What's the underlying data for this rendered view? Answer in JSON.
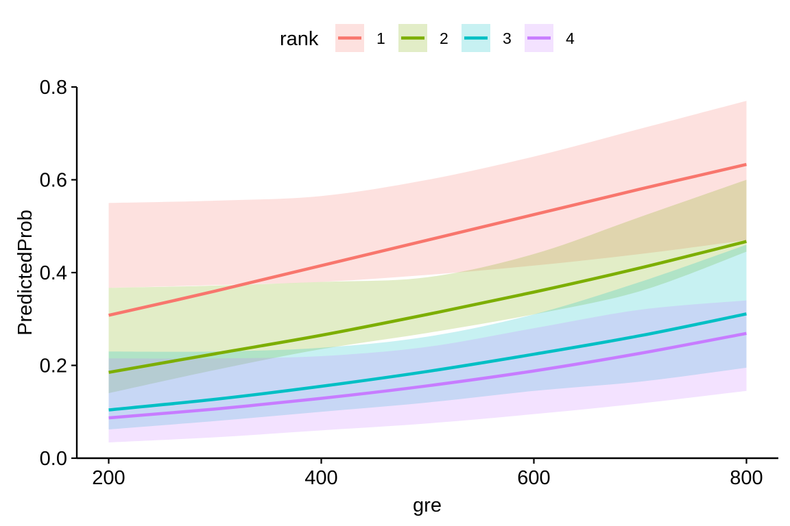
{
  "chart_data": {
    "type": "line",
    "xlabel": "gre",
    "ylabel": "PredictedProb",
    "xlim": [
      170,
      830
    ],
    "ylim": [
      0,
      0.8
    ],
    "x_ticks": [
      200,
      400,
      600,
      800
    ],
    "y_ticks": [
      0.0,
      0.2,
      0.4,
      0.6,
      0.8
    ],
    "x_tick_labels": [
      "200",
      "400",
      "600",
      "800"
    ],
    "y_tick_labels": [
      "0.0",
      "0.2",
      "0.4",
      "0.6",
      "0.8"
    ],
    "legend": {
      "title": "rank",
      "position": "top"
    },
    "x": [
      200,
      300,
      400,
      500,
      600,
      700,
      800
    ],
    "series": [
      {
        "name": "1",
        "color": "#F8766D",
        "fill": "#F8766D",
        "values": [
          0.308,
          0.36,
          0.415,
          0.47,
          0.525,
          0.58,
          0.633
        ],
        "lower": [
          0.367,
          0.373,
          0.38,
          0.395,
          0.415,
          0.44,
          0.47
        ],
        "upper": [
          0.55,
          0.555,
          0.565,
          0.6,
          0.65,
          0.71,
          0.77
        ]
      },
      {
        "name": "2",
        "color": "#7CAE00",
        "fill": "#7CAE00",
        "values": [
          0.185,
          0.225,
          0.265,
          0.31,
          0.358,
          0.41,
          0.467
        ],
        "lower": [
          0.14,
          0.19,
          0.235,
          0.27,
          0.31,
          0.36,
          0.445
        ],
        "upper": [
          0.367,
          0.372,
          0.38,
          0.39,
          0.44,
          0.52,
          0.6
        ]
      },
      {
        "name": "3",
        "color": "#00BFC4",
        "fill": "#00BFC4",
        "values": [
          0.104,
          0.127,
          0.155,
          0.187,
          0.224,
          0.264,
          0.311
        ],
        "lower": [
          0.062,
          0.08,
          0.1,
          0.12,
          0.145,
          0.165,
          0.195
        ],
        "upper": [
          0.23,
          0.23,
          0.238,
          0.262,
          0.31,
          0.38,
          0.46
        ]
      },
      {
        "name": "4",
        "color": "#C77CFF",
        "fill": "#C77CFF",
        "values": [
          0.087,
          0.106,
          0.129,
          0.156,
          0.188,
          0.226,
          0.269
        ],
        "lower": [
          0.034,
          0.045,
          0.06,
          0.075,
          0.095,
          0.118,
          0.145
        ],
        "upper": [
          0.215,
          0.215,
          0.22,
          0.24,
          0.28,
          0.32,
          0.34
        ]
      }
    ]
  }
}
